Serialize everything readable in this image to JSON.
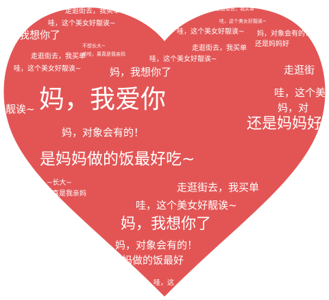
{
  "colors": {
    "background": "#ffffff",
    "heart": "#e35555",
    "text": "#ffffff"
  },
  "phrases": {
    "love_mom": "妈，我爱你",
    "miss_you": "妈，我想你了",
    "partner": "妈，对象会有的！",
    "home_cooking": "是妈妈做的饭最好吃~",
    "pretty_girl": "哇，这个美女好靓诶~",
    "shopping": "走逛街去，我买单",
    "still_mom": "还是妈妈好",
    "grow_up": "不想长大~",
    "real_mom": "哈哈，果真是我亲妈",
    "frag_left_ai": "靓诶~",
    "frag_left_grow": "~长大~",
    "frag_left_real": "果真是我亲妈",
    "frag_bottom_food": "妈做的饭最好",
    "frag_right_shop": "走逛街",
    "frag_right_pretty": "哇，这个美女",
    "frag_right_still": "还是妈妈好",
    "frag_right_dui": "妈，对",
    "frag_top_miss": "我想你了",
    "frag_bottom_mini": "哇，这"
  }
}
